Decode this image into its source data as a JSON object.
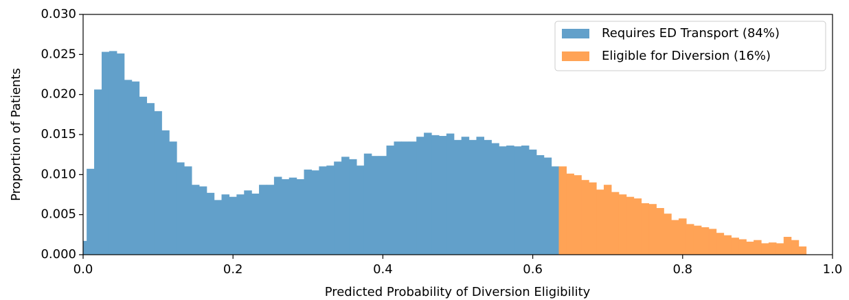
{
  "chart_data": {
    "type": "histogram",
    "xlabel": "Predicted Probability of Diversion Eligibility",
    "ylabel": "Proportion of Patients",
    "xlim": [
      0,
      1
    ],
    "ylim": [
      0,
      0.03
    ],
    "xticks": [
      {
        "value": 0,
        "label": "0.0"
      },
      0.2,
      0.4,
      0.6,
      0.8,
      {
        "value": 1,
        "label": "1.0"
      }
    ],
    "yticks": [
      {
        "value": 0,
        "label": "0.000"
      },
      0.005,
      {
        "value": 0.01,
        "label": "0.010"
      },
      0.015,
      {
        "value": 0.02,
        "label": "0.020"
      },
      0.025,
      {
        "value": 0.03,
        "label": "0.030"
      }
    ],
    "legend": "upper right",
    "series": [
      {
        "name": "Requires ED Transport (84%)",
        "color": "#62a0ca",
        "bins": [
          0,
          0.005,
          0.015,
          0.025,
          0.035,
          0.045,
          0.055,
          0.065,
          0.075,
          0.085,
          0.095,
          0.105,
          0.115,
          0.125,
          0.135,
          0.145,
          0.155,
          0.165,
          0.175,
          0.185,
          0.195,
          0.205,
          0.215,
          0.225,
          0.235,
          0.245,
          0.255,
          0.265,
          0.275,
          0.285,
          0.295,
          0.305,
          0.315,
          0.325,
          0.335,
          0.345,
          0.355,
          0.365,
          0.375,
          0.385,
          0.395,
          0.405,
          0.415,
          0.425,
          0.435,
          0.445,
          0.455,
          0.465,
          0.475,
          0.485,
          0.495,
          0.505,
          0.515,
          0.525,
          0.535,
          0.545,
          0.555,
          0.565,
          0.575,
          0.585,
          0.595,
          0.605,
          0.615,
          0.625,
          0.635
        ],
        "values": [
          0.0017,
          0.0107,
          0.0206,
          0.0253,
          0.0254,
          0.0251,
          0.0218,
          0.0216,
          0.0197,
          0.0189,
          0.0179,
          0.0155,
          0.0141,
          0.0115,
          0.011,
          0.0087,
          0.0085,
          0.0077,
          0.0068,
          0.0075,
          0.0072,
          0.0075,
          0.008,
          0.0076,
          0.0087,
          0.0087,
          0.0097,
          0.0094,
          0.0096,
          0.0094,
          0.0106,
          0.0105,
          0.011,
          0.0111,
          0.0116,
          0.0122,
          0.0119,
          0.0111,
          0.0126,
          0.0123,
          0.0123,
          0.0136,
          0.0141,
          0.0141,
          0.0141,
          0.0147,
          0.0152,
          0.0149,
          0.0148,
          0.0151,
          0.0143,
          0.0147,
          0.0143,
          0.0147,
          0.0143,
          0.0139,
          0.0135,
          0.0136,
          0.0135,
          0.0136,
          0.0131,
          0.0124,
          0.0121,
          0.011
        ]
      },
      {
        "name": "Eligible for Diversion (16%)",
        "color": "#ffa356",
        "bins": [
          0.635,
          0.645,
          0.655,
          0.665,
          0.675,
          0.685,
          0.695,
          0.705,
          0.715,
          0.725,
          0.735,
          0.745,
          0.755,
          0.765,
          0.775,
          0.785,
          0.795,
          0.805,
          0.815,
          0.825,
          0.835,
          0.845,
          0.855,
          0.865,
          0.875,
          0.885,
          0.895,
          0.905,
          0.915,
          0.925,
          0.935,
          0.945,
          0.955,
          0.965
        ],
        "values": [
          0.011,
          0.0101,
          0.0099,
          0.0093,
          0.009,
          0.0081,
          0.0087,
          0.0078,
          0.0075,
          0.0072,
          0.007,
          0.0064,
          0.0063,
          0.0058,
          0.0051,
          0.0043,
          0.0045,
          0.0038,
          0.0036,
          0.0034,
          0.0032,
          0.0027,
          0.0024,
          0.0021,
          0.0019,
          0.0016,
          0.0018,
          0.0014,
          0.0015,
          0.0014,
          0.0022,
          0.0018,
          0.001
        ]
      }
    ]
  }
}
